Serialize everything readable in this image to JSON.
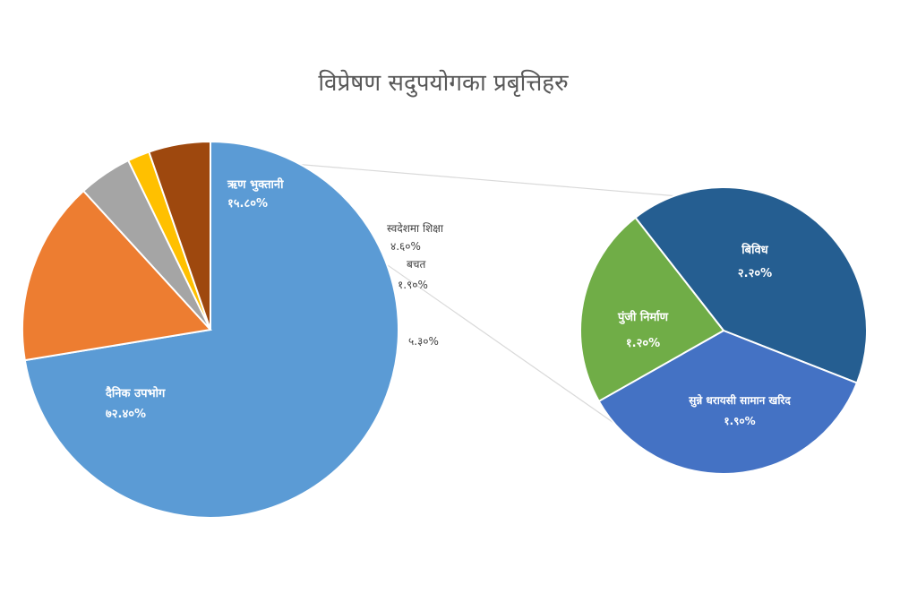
{
  "chart_data": {
    "type": "pie",
    "title": "विप्रेषण सदुपयोगका प्रबृत्तिहरु",
    "main_pie": {
      "slices": [
        {
          "name": "दैनिक उपभोग",
          "label": "दैनिक उपभोग",
          "value_text": "७२.४०%",
          "value": 72.4,
          "color": "#5B9BD5"
        },
        {
          "name": "ऋण भुक्तानी",
          "label": "ऋण भुक्तानी",
          "value_text": "१५.८०%",
          "value": 15.8,
          "color": "#ED7D31"
        },
        {
          "name": "स्वदेशमा शिक्षा",
          "label": "स्वदेशमा शिक्षा",
          "value_text": "४.६०%",
          "value": 4.6,
          "color": "#A5A5A5"
        },
        {
          "name": "बचत",
          "label": "बचत",
          "value_text": "१.९०%",
          "value": 1.9,
          "color": "#FFC000"
        },
        {
          "name": "",
          "label": "",
          "value_text": "५.३०%",
          "value": 5.3,
          "color": "#9E480E"
        }
      ]
    },
    "sub_pie": {
      "slices": [
        {
          "name": "बिविध",
          "label": "बिविध",
          "value_text": "२.२०%",
          "value": 2.2,
          "color": "#255E91"
        },
        {
          "name": "सुन्ने धरायसी सामान खरिद",
          "label": "सुन्ने धरायसी सामान खरिद",
          "value_text": "१.९०%",
          "value": 1.9,
          "color": "#4472C4"
        },
        {
          "name": "पुंजी निर्माण",
          "label": "पुंजी निर्माण",
          "value_text": "१.२०%",
          "value": 1.2,
          "color": "#70AD47"
        }
      ]
    },
    "legend": "none"
  }
}
